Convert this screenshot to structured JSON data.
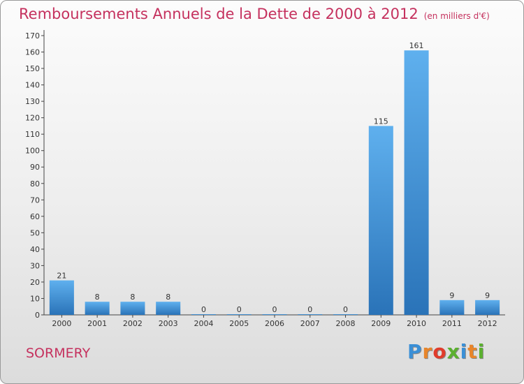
{
  "header": {
    "title": "Remboursements Annuels de la Dette de 2000 à 2012",
    "subtitle": "(en milliers d'€)"
  },
  "footer": {
    "place": "SORMERY",
    "logo_text": "Proxiti",
    "logo_colors": [
      "#3a8fd6",
      "#e8852a",
      "#e03c2c",
      "#5bb02f",
      "#3a8fd6",
      "#e8852a",
      "#5bb02f"
    ]
  },
  "chart_data": {
    "type": "bar",
    "categories": [
      "2000",
      "2001",
      "2002",
      "2003",
      "2004",
      "2005",
      "2006",
      "2007",
      "2008",
      "2009",
      "2010",
      "2011",
      "2012"
    ],
    "values": [
      21,
      8,
      8,
      8,
      0,
      0,
      0,
      0,
      0,
      115,
      161,
      9,
      9
    ],
    "value_labels": [
      "21",
      "8",
      "8",
      "8",
      "0",
      "0",
      "0",
      "0",
      "0",
      "115",
      "161",
      "9",
      "9"
    ],
    "yticks": [
      "0",
      "10",
      "20",
      "30",
      "40",
      "50",
      "60",
      "70",
      "80",
      "90",
      "100",
      "110",
      "120",
      "130",
      "140",
      "150",
      "160",
      "170"
    ],
    "title": "Remboursements Annuels de la Dette de 2000 à 2012",
    "xlabel": "",
    "ylabel": "",
    "ylim": [
      0,
      170
    ],
    "grid": false,
    "bar_color": "#3a8fd6"
  }
}
